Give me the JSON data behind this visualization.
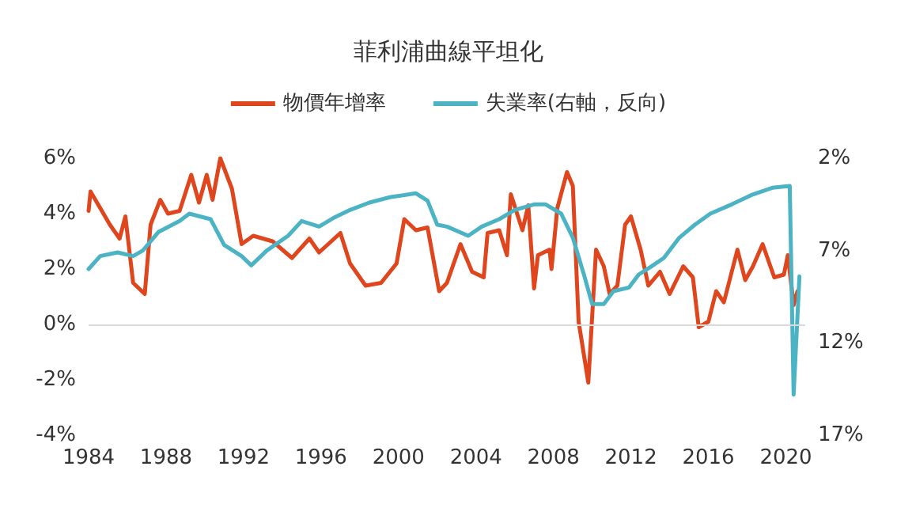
{
  "chart_data": {
    "type": "line",
    "title": "菲利浦曲線平坦化",
    "legend": "top",
    "ref_lines": [
      {
        "axis": "y",
        "value": 0,
        "color": "#d9d9d9"
      }
    ],
    "marker": "none",
    "line_style": "solid",
    "xlim": [
      1984,
      2021
    ],
    "xticks": [
      1984,
      1988,
      1992,
      1996,
      2000,
      2004,
      2008,
      2012,
      2016,
      2020
    ],
    "ylim": [
      -4,
      6
    ],
    "yticks": [
      {
        "value": -4,
        "label": "-4%"
      },
      {
        "value": -2,
        "label": "-2%"
      },
      {
        "value": 0,
        "label": "0%"
      },
      {
        "value": 2,
        "label": "2%"
      },
      {
        "value": 4,
        "label": "4%"
      },
      {
        "value": 6,
        "label": "6%"
      }
    ],
    "y2lim": [
      17,
      2
    ],
    "y2ticks": [
      {
        "value": 2,
        "label": "2%"
      },
      {
        "value": 7,
        "label": "7%"
      },
      {
        "value": 12,
        "label": "12%"
      },
      {
        "value": 17,
        "label": "17%"
      }
    ],
    "series": [
      {
        "name": "物價年增率",
        "color": "#e0461e",
        "x": [
          1984.0,
          1984.1,
          1984.6,
          1985.1,
          1985.6,
          1985.9,
          1986.3,
          1986.9,
          1987.2,
          1987.7,
          1988.1,
          1988.7,
          1989.3,
          1989.7,
          1990.1,
          1990.4,
          1990.8,
          1991.4,
          1991.9,
          1992.5,
          1993.5,
          1994.5,
          1995.4,
          1995.9,
          1997.0,
          1997.5,
          1998.3,
          1999.1,
          1999.9,
          2000.3,
          2000.9,
          2001.5,
          2002.1,
          2002.5,
          2003.2,
          2003.8,
          2004.4,
          2004.6,
          2005.2,
          2005.6,
          2005.8,
          2006.4,
          2006.7,
          2007.0,
          2007.2,
          2007.8,
          2007.9,
          2008.2,
          2008.7,
          2009.0,
          2009.3,
          2009.8,
          2010.2,
          2010.6,
          2010.9,
          2011.3,
          2011.7,
          2012.0,
          2012.5,
          2012.9,
          2013.5,
          2014.0,
          2014.7,
          2015.2,
          2015.5,
          2016.0,
          2016.4,
          2016.8,
          2017.5,
          2017.9,
          2018.3,
          2018.8,
          2019.4,
          2019.9,
          2020.1,
          2020.4,
          2020.6
        ],
        "values": [
          4.1,
          4.8,
          4.2,
          3.6,
          3.1,
          3.9,
          1.5,
          1.1,
          3.6,
          4.5,
          4.0,
          4.1,
          5.4,
          4.4,
          5.4,
          4.5,
          6.0,
          4.9,
          2.9,
          3.2,
          3.0,
          2.4,
          3.1,
          2.6,
          3.3,
          2.2,
          1.4,
          1.5,
          2.2,
          3.8,
          3.4,
          3.5,
          1.2,
          1.5,
          2.9,
          1.9,
          1.7,
          3.3,
          3.4,
          2.5,
          4.7,
          3.4,
          4.3,
          1.3,
          2.5,
          2.7,
          2.0,
          4.2,
          5.5,
          5.0,
          0.1,
          -2.1,
          2.7,
          2.1,
          1.1,
          1.4,
          3.6,
          3.9,
          2.7,
          1.4,
          1.9,
          1.1,
          2.1,
          1.7,
          -0.1,
          0.1,
          1.2,
          0.8,
          2.7,
          1.6,
          2.1,
          2.9,
          1.7,
          1.8,
          2.5,
          0.7,
          1.2
        ]
      },
      {
        "name": "失業率(右軸，反向)",
        "color": "#4bb3c4",
        "axis": "y2",
        "x": [
          1984.0,
          1984.6,
          1985.5,
          1986.3,
          1986.8,
          1987.6,
          1988.7,
          1989.2,
          1990.3,
          1991.0,
          1991.9,
          1992.4,
          1993.2,
          1994.3,
          1995.0,
          1995.9,
          1996.7,
          1997.5,
          1998.5,
          1999.6,
          2000.9,
          2001.5,
          2002.0,
          2002.5,
          2003.6,
          2004.3,
          2005.2,
          2006.0,
          2007.0,
          2007.6,
          2008.4,
          2009.0,
          2009.6,
          2010.0,
          2010.6,
          2011.1,
          2011.9,
          2012.4,
          2013.0,
          2013.7,
          2014.5,
          2015.3,
          2016.1,
          2017.2,
          2018.2,
          2019.3,
          2020.2,
          2020.4,
          2020.7
        ],
        "values": [
          8.0,
          7.3,
          7.1,
          7.3,
          7.0,
          6.0,
          5.4,
          5.0,
          5.3,
          6.7,
          7.3,
          7.8,
          7.0,
          6.2,
          5.4,
          5.7,
          5.2,
          4.8,
          4.4,
          4.1,
          3.9,
          4.3,
          5.6,
          5.7,
          6.2,
          5.7,
          5.3,
          4.8,
          4.5,
          4.5,
          5.0,
          6.3,
          8.4,
          9.9,
          9.9,
          9.2,
          9.0,
          8.3,
          7.9,
          7.4,
          6.3,
          5.6,
          5.0,
          4.5,
          4.0,
          3.6,
          3.5,
          14.8,
          8.4
        ]
      }
    ]
  }
}
